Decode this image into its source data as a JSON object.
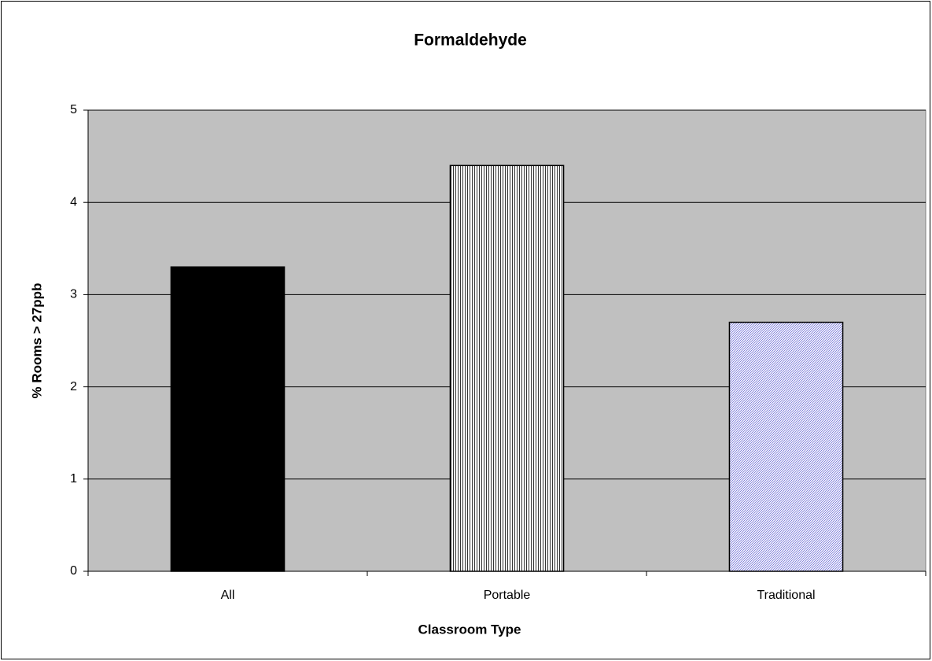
{
  "chart_data": {
    "type": "bar",
    "title": "Formaldehyde",
    "x_label": "Classroom Type",
    "y_label": "% Rooms > 27ppb",
    "categories": [
      "All",
      "Portable",
      "Traditional"
    ],
    "values": [
      3.3,
      4.4,
      2.7
    ],
    "colors": [
      "#000000",
      "#000000",
      "#5a5ad0"
    ],
    "patterns": [
      "solid",
      "vertical",
      "diagonal"
    ],
    "ylim": [
      0,
      5
    ],
    "yticks": [
      0,
      1,
      2,
      3,
      4,
      5
    ],
    "grid": true,
    "plot_background": "#c0c0c0"
  }
}
